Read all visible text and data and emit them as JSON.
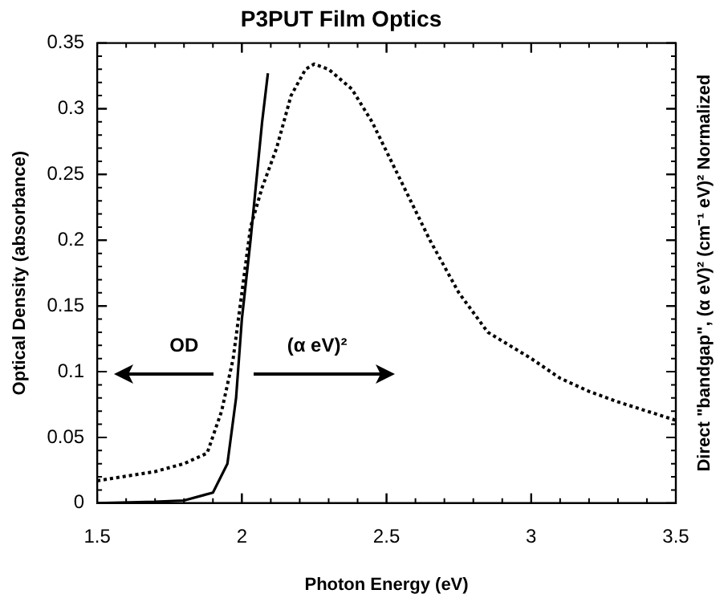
{
  "chart_data": {
    "type": "line",
    "title": "P3PUT Film Optics",
    "xlabel": "Photon Energy (eV)",
    "ylabel": "Optical Density (absorbance)",
    "y2label": "Direct \"bandgap\", (α eV)² (cm⁻¹ eV)² Normalized",
    "annotations": [
      "OD",
      "(α eV)²"
    ],
    "xlim": [
      1.5,
      3.5
    ],
    "xticks": [
      1.5,
      2,
      2.5,
      3,
      3.5
    ],
    "ylim": [
      0,
      0.35
    ],
    "yticks": [
      0,
      0.05,
      0.1,
      0.15,
      0.2,
      0.25,
      0.3,
      0.35
    ],
    "grid": false,
    "legend": false,
    "marker": "none",
    "series": [
      {
        "color": "#000000",
        "line_style": "solid",
        "x": [
          1.5,
          1.7,
          1.8,
          1.9,
          1.95,
          1.98,
          2.0,
          2.03,
          2.07,
          2.09
        ],
        "values": [
          0,
          0.001,
          0.002,
          0.008,
          0.03,
          0.08,
          0.14,
          0.2,
          0.29,
          0.327
        ]
      },
      {
        "color": "#000000",
        "line_style": "dotted",
        "x": [
          1.5,
          1.7,
          1.8,
          1.88,
          1.93,
          1.97,
          2.0,
          2.03,
          2.07,
          2.12,
          2.17,
          2.22,
          2.25,
          2.3,
          2.38,
          2.45,
          2.55,
          2.65,
          2.75,
          2.85,
          3.0,
          3.1,
          3.2,
          3.3,
          3.4,
          3.5
        ],
        "values": [
          0.017,
          0.024,
          0.03,
          0.038,
          0.07,
          0.11,
          0.16,
          0.21,
          0.24,
          0.27,
          0.31,
          0.33,
          0.334,
          0.33,
          0.315,
          0.29,
          0.245,
          0.2,
          0.16,
          0.13,
          0.11,
          0.095,
          0.085,
          0.077,
          0.07,
          0.063
        ]
      }
    ]
  }
}
